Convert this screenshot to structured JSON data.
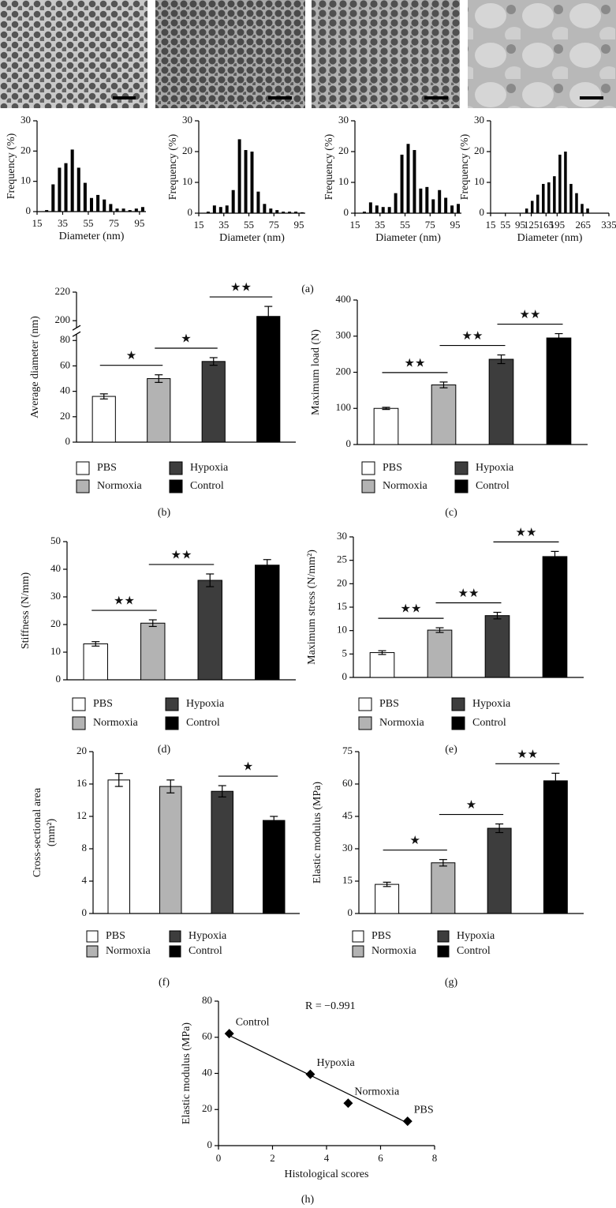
{
  "chart_data": [
    {
      "type": "histogram",
      "panel": "(a)",
      "x_label": "Diameter (nm)",
      "y_label": "Frequency (%)",
      "color": "#000000",
      "bins": [
        20,
        25,
        30,
        35,
        40,
        45,
        50,
        55,
        60,
        65,
        70,
        75,
        80,
        85,
        90,
        95,
        100
      ],
      "values": [
        0.5,
        9,
        14.5,
        16,
        20.5,
        14.5,
        9.5,
        4.5,
        5.5,
        4,
        2.5,
        1,
        1,
        0.5,
        1,
        1.5
      ],
      "xlim": [
        15,
        100
      ],
      "xticks": [
        15,
        35,
        55,
        75,
        95
      ],
      "ylim": [
        0,
        30
      ],
      "yticks": [
        0,
        10,
        20,
        30
      ]
    },
    {
      "type": "histogram",
      "x_label": "Diameter (nm)",
      "y_label": "Frequency (%)",
      "color": "#000000",
      "bins": [
        20,
        25,
        30,
        35,
        40,
        45,
        50,
        55,
        60,
        65,
        70,
        75,
        80,
        85,
        90,
        95,
        100
      ],
      "values": [
        0.5,
        2.5,
        2,
        2.5,
        7.5,
        24,
        20.5,
        20,
        7,
        3,
        1.5,
        1,
        0.5,
        0.5,
        0.5,
        0.3
      ],
      "xlim": [
        15,
        100
      ],
      "xticks": [
        15,
        35,
        55,
        75,
        95
      ],
      "ylim": [
        0,
        30
      ],
      "yticks": [
        0,
        10,
        20,
        30
      ]
    },
    {
      "type": "histogram",
      "x_label": "Diameter (nm)",
      "y_label": "Frequency (%)",
      "color": "#000000",
      "bins": [
        20,
        25,
        30,
        35,
        40,
        45,
        50,
        55,
        60,
        65,
        70,
        75,
        80,
        85,
        90,
        95,
        100
      ],
      "values": [
        0.5,
        3.5,
        2.5,
        2,
        2,
        6.5,
        19,
        22.5,
        20.5,
        8,
        8.5,
        4.5,
        7.5,
        5,
        2.5,
        3
      ],
      "xlim": [
        15,
        100
      ],
      "xticks": [
        15,
        35,
        55,
        75,
        95
      ],
      "ylim": [
        0,
        30
      ],
      "yticks": [
        0,
        10,
        20,
        30
      ]
    },
    {
      "type": "histogram",
      "x_label": "Diameter (nm)",
      "y_label": "Frequency (%)",
      "color": "#000000",
      "bins": [
        105,
        120,
        135,
        150,
        165,
        180,
        195,
        210,
        225,
        240,
        255,
        270,
        285
      ],
      "values": [
        1.5,
        4,
        6,
        9.5,
        10,
        12,
        19,
        20,
        9.5,
        6.5,
        3,
        1.5
      ],
      "xlim": [
        15,
        335
      ],
      "xticks": [
        15,
        55,
        95,
        125,
        165,
        195,
        265,
        335
      ],
      "ylim": [
        0,
        30
      ],
      "yticks": [
        0,
        10,
        20,
        30
      ]
    },
    {
      "type": "bar",
      "panel": "(b)",
      "y_label": "Average diameter (nm)",
      "categories": [
        "PBS",
        "Normoxia",
        "Hypoxia",
        "Control"
      ],
      "colors": [
        "#ffffff",
        "#b3b3b3",
        "#3d3d3d",
        "#000000"
      ],
      "values": [
        36,
        50,
        63.5,
        203
      ],
      "errors": [
        2,
        3,
        3,
        7
      ],
      "ylim": [
        0,
        220
      ],
      "ybreak": [
        85,
        195
      ],
      "yticks": [
        0,
        20,
        40,
        60,
        80,
        200,
        220
      ],
      "significance": [
        {
          "between": [
            "PBS",
            "Normoxia"
          ],
          "label": "★"
        },
        {
          "between": [
            "Normoxia",
            "Hypoxia"
          ],
          "label": "★"
        },
        {
          "between": [
            "Hypoxia",
            "Control"
          ],
          "label": "★★"
        }
      ],
      "legend": true
    },
    {
      "type": "bar",
      "panel": "(c)",
      "y_label": "Maximum load (N)",
      "categories": [
        "PBS",
        "Normoxia",
        "Hypoxia",
        "Control"
      ],
      "colors": [
        "#ffffff",
        "#b3b3b3",
        "#3d3d3d",
        "#000000"
      ],
      "values": [
        100,
        165,
        236,
        295
      ],
      "errors": [
        3,
        8,
        12,
        12
      ],
      "ylim": [
        0,
        400
      ],
      "yticks": [
        0,
        100,
        200,
        300,
        400
      ],
      "significance": [
        {
          "between": [
            "PBS",
            "Normoxia"
          ],
          "label": "★★"
        },
        {
          "between": [
            "Normoxia",
            "Hypoxia"
          ],
          "label": "★★"
        },
        {
          "between": [
            "Hypoxia",
            "Control"
          ],
          "label": "★★"
        }
      ],
      "legend": true
    },
    {
      "type": "bar",
      "panel": "(d)",
      "y_label": "Stiffness (N/mm)",
      "categories": [
        "PBS",
        "Normoxia",
        "Hypoxia",
        "Control"
      ],
      "colors": [
        "#ffffff",
        "#b3b3b3",
        "#3d3d3d",
        "#000000"
      ],
      "values": [
        13,
        20.5,
        36,
        41.5
      ],
      "errors": [
        0.8,
        1.2,
        2.3,
        2
      ],
      "ylim": [
        0,
        50
      ],
      "yticks": [
        0,
        10,
        20,
        30,
        40,
        50
      ],
      "significance": [
        {
          "between": [
            "PBS",
            "Normoxia"
          ],
          "label": "★★"
        },
        {
          "between": [
            "Normoxia",
            "Hypoxia"
          ],
          "label": "★★"
        }
      ],
      "legend": true
    },
    {
      "type": "bar",
      "panel": "(e)",
      "y_label": "Maximum stress (N/mm²)",
      "categories": [
        "PBS",
        "Normoxia",
        "Hypoxia",
        "Control"
      ],
      "colors": [
        "#ffffff",
        "#b3b3b3",
        "#3d3d3d",
        "#000000"
      ],
      "values": [
        5.3,
        10.1,
        13.2,
        25.8
      ],
      "errors": [
        0.4,
        0.5,
        0.7,
        1.1
      ],
      "ylim": [
        0,
        30
      ],
      "yticks": [
        0,
        5,
        10,
        15,
        20,
        25,
        30
      ],
      "significance": [
        {
          "between": [
            "PBS",
            "Normoxia"
          ],
          "label": "★★"
        },
        {
          "between": [
            "Normoxia",
            "Hypoxia"
          ],
          "label": "★★"
        },
        {
          "between": [
            "Hypoxia",
            "Control"
          ],
          "label": "★★"
        }
      ],
      "legend": true
    },
    {
      "type": "bar",
      "panel": "(f)",
      "y_label": [
        "Cross-sectional area",
        "(mm²)"
      ],
      "categories": [
        "PBS",
        "Normoxia",
        "Hypoxia",
        "Control"
      ],
      "colors": [
        "#ffffff",
        "#b3b3b3",
        "#3d3d3d",
        "#000000"
      ],
      "values": [
        16.5,
        15.7,
        15.1,
        11.5
      ],
      "errors": [
        0.8,
        0.8,
        0.7,
        0.5
      ],
      "ylim": [
        0,
        20
      ],
      "yticks": [
        0,
        4,
        8,
        12,
        16,
        20
      ],
      "significance": [
        {
          "between": [
            "Hypoxia",
            "Control"
          ],
          "label": "★"
        }
      ],
      "legend": true
    },
    {
      "type": "bar",
      "panel": "(g)",
      "y_label": "Elastic modulus (MPa)",
      "categories": [
        "PBS",
        "Normoxia",
        "Hypoxia",
        "Control"
      ],
      "colors": [
        "#ffffff",
        "#b3b3b3",
        "#3d3d3d",
        "#000000"
      ],
      "values": [
        13.5,
        23.5,
        39.5,
        61.5
      ],
      "errors": [
        1,
        1.5,
        2,
        3.5
      ],
      "ylim": [
        0,
        75
      ],
      "yticks": [
        0,
        15,
        30,
        45,
        60,
        75
      ],
      "significance": [
        {
          "between": [
            "PBS",
            "Normoxia"
          ],
          "label": "★"
        },
        {
          "between": [
            "Normoxia",
            "Hypoxia"
          ],
          "label": "★"
        },
        {
          "between": [
            "Hypoxia",
            "Control"
          ],
          "label": "★★"
        }
      ],
      "legend": true
    },
    {
      "type": "scatter",
      "panel": "(h)",
      "x_label": "Histological scores",
      "y_label": "Elastic modulus (MPa)",
      "annotation": "R = −0.991",
      "color": "#000000",
      "x": [
        0.4,
        3.4,
        4.8,
        7
      ],
      "y": [
        62,
        39.5,
        23.5,
        13.5
      ],
      "labels": [
        "Control",
        "Hypoxia",
        "Normoxia",
        "PBS"
      ],
      "trendline": {
        "x": [
          0.4,
          7
        ],
        "y": [
          61,
          12.5
        ]
      },
      "xlim": [
        0,
        8
      ],
      "xticks": [
        0,
        2,
        4,
        6,
        8
      ],
      "ylim": [
        0,
        80
      ],
      "yticks": [
        0,
        20,
        40,
        60,
        80
      ]
    }
  ]
}
